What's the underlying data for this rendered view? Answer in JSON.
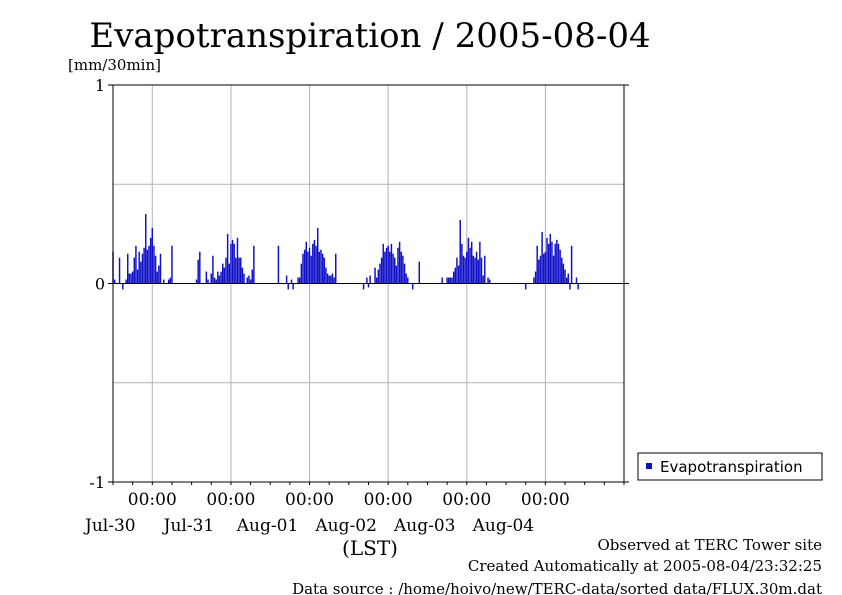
{
  "chart_data": {
    "type": "bar",
    "title": "Evapotranspiration / 2005-08-04",
    "ylabel": "[mm/30min]",
    "xlabel": "(LST)",
    "ylim": [
      -1,
      1
    ],
    "yticks": [
      -1,
      0,
      1
    ],
    "grid": true,
    "legend_position": "right",
    "colors": {
      "bar": "#1010c8",
      "grid": "#b4b4b4"
    },
    "x_range": [
      "2005-07-29T12:00",
      "2005-08-04T24:00"
    ],
    "x_ticks": [
      {
        "time": "00:00",
        "date": "Jul-30"
      },
      {
        "time": "00:00",
        "date": "Jul-31"
      },
      {
        "time": "00:00",
        "date": "Aug-01"
      },
      {
        "time": "00:00",
        "date": "Aug-02"
      },
      {
        "time": "00:00",
        "date": "Aug-03"
      },
      {
        "time": "00:00",
        "date": "Aug-04"
      }
    ],
    "series": [
      {
        "name": "Evapotranspiration",
        "interval": "30min",
        "start": "2005-07-29T12:00",
        "values": [
          0.16,
          0.02,
          0,
          0,
          0.13,
          0,
          -0.03,
          0,
          0.02,
          0.15,
          0.05,
          0.05,
          0.06,
          0.13,
          0.19,
          0.07,
          0.16,
          0.11,
          0.15,
          0.18,
          0.35,
          0.17,
          0.19,
          0.23,
          0.28,
          0.19,
          0.14,
          0.06,
          0.09,
          0.15,
          0,
          0.02,
          0,
          0,
          0.02,
          0.03,
          0.19,
          0,
          0,
          0,
          0,
          0,
          0,
          0,
          0,
          0,
          0,
          0,
          0,
          0,
          0,
          0.02,
          0.12,
          0.16,
          0,
          0,
          0,
          0.06,
          0.02,
          0,
          0.05,
          0.14,
          0.03,
          0.02,
          0.06,
          0.04,
          0.06,
          0.1,
          0.08,
          0.13,
          0.25,
          0.1,
          0.2,
          0.22,
          0.2,
          0.13,
          0.23,
          0.13,
          0.13,
          0.08,
          0.05,
          0,
          0.03,
          0.04,
          0.02,
          0.07,
          0.19,
          0,
          0,
          0,
          0,
          0,
          0,
          0,
          0,
          0,
          0,
          0,
          0,
          0,
          0,
          0.19,
          0,
          0,
          0,
          0,
          0.04,
          -0.03,
          0,
          0.02,
          -0.03,
          0,
          0,
          0.03,
          0.03,
          0.1,
          0.15,
          0.17,
          0.21,
          0.16,
          0.18,
          0.14,
          0.2,
          0.22,
          0.19,
          0.28,
          0.16,
          0.17,
          0.15,
          0.13,
          0.08,
          0.05,
          0.04,
          0.04,
          0.05,
          0.03,
          0.15,
          0,
          0,
          0,
          0,
          0,
          0,
          0,
          0,
          0,
          0,
          0,
          0,
          0,
          0,
          0,
          0,
          -0.03,
          0,
          0.03,
          -0.02,
          0.04,
          0,
          0,
          0.08,
          0.03,
          0.07,
          0.1,
          0.13,
          0.2,
          0.16,
          0.18,
          0.19,
          0.16,
          0.2,
          0.15,
          0.13,
          0.09,
          0.18,
          0.21,
          0.16,
          0.14,
          0.1,
          0.05,
          0.03,
          0,
          0,
          -0.03,
          0,
          0,
          0,
          0.11,
          0,
          0,
          0,
          0,
          0,
          0,
          0,
          0,
          0,
          0,
          0,
          0,
          0,
          0.03,
          0,
          0,
          0.03,
          0.03,
          0.03,
          0.03,
          0.06,
          0.08,
          0.13,
          0.09,
          0.32,
          0.2,
          0.14,
          0.13,
          0.16,
          0.23,
          0.18,
          0.21,
          0.14,
          0.13,
          0.16,
          0.12,
          0.21,
          0.13,
          0.04,
          0.14,
          0,
          0.03,
          0.02,
          0,
          0,
          0,
          0,
          0,
          0,
          0,
          0,
          0,
          0,
          0,
          0,
          0,
          0,
          0,
          0,
          0,
          0,
          0,
          0,
          0,
          -0.03,
          0,
          0,
          0,
          0,
          0.03,
          0.06,
          0.19,
          0.12,
          0.14,
          0.26,
          0.15,
          0.16,
          0.23,
          0.2,
          0.25,
          0.21,
          0.14,
          0.2,
          0.22,
          0.2,
          0.17,
          0.13,
          0.1,
          0.07,
          0.03,
          0.05,
          -0.03,
          0.19,
          0,
          0,
          0.03,
          -0.03,
          0,
          0,
          0
        ]
      }
    ]
  },
  "axis": {
    "y_unit": "[mm/30min]",
    "y_tick_labels": [
      "1",
      "0",
      "-1"
    ],
    "x_label": "(LST)"
  },
  "legend": {
    "label": "Evapotranspiration"
  },
  "footer": {
    "line1": "Observed at TERC Tower site",
    "line2": "Created Automatically at 2005-08-04/23:32:25",
    "line3": "Data source : /home/hoivo/new/TERC-data/sorted  data/FLUX.30m.dat"
  }
}
